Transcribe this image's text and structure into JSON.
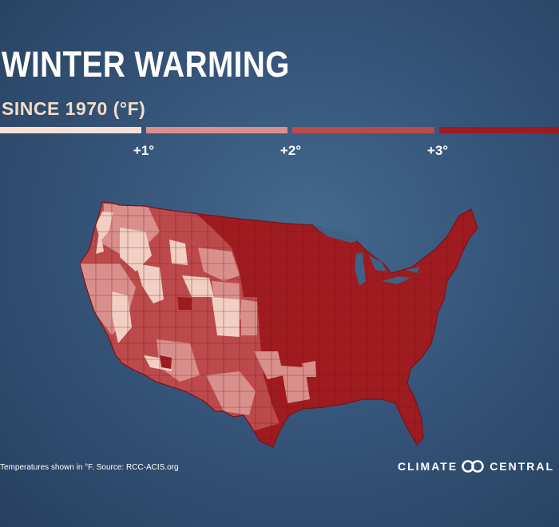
{
  "title": "WINTER WARMING",
  "subtitle": "SINCE 1970 (°F)",
  "legend": {
    "items": [
      {
        "label": "",
        "color": "#f5e1d6"
      },
      {
        "label": "+1°",
        "color": "#d9908c"
      },
      {
        "label": "+2°",
        "color": "#bc4a4c"
      },
      {
        "label": "+3°",
        "color": "#9e1b20"
      }
    ]
  },
  "map": {
    "region": "Contiguous United States climate divisions",
    "colors": {
      "light": "#f2cfc3",
      "pink": "#d9908c",
      "medium": "#bc4a4c",
      "dark": "#9e1b20",
      "border": "#7a1418"
    }
  },
  "source": "Temperatures shown in °F. Source: RCC-ACIS.org",
  "logo": {
    "left": "CLIMATE",
    "right": "CENTRAL",
    "icon": "climate-central-rings-icon"
  }
}
